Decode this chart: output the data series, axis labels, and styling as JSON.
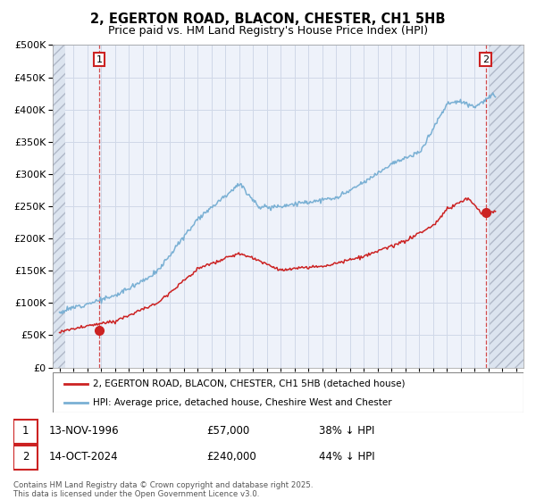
{
  "title": "2, EGERTON ROAD, BLACON, CHESTER, CH1 5HB",
  "subtitle": "Price paid vs. HM Land Registry's House Price Index (HPI)",
  "title_fontsize": 10.5,
  "subtitle_fontsize": 9,
  "ylim": [
    0,
    500000
  ],
  "yticks": [
    0,
    50000,
    100000,
    150000,
    200000,
    250000,
    300000,
    350000,
    400000,
    450000,
    500000
  ],
  "xlim_min": 1993.5,
  "xlim_max": 2027.5,
  "hatch_left_end": 1994.42,
  "hatch_right_start": 2025.08,
  "sale1_year": 1996.87,
  "sale1_price": 57000,
  "sale1_label": "1",
  "sale2_year": 2024.79,
  "sale2_price": 240000,
  "sale2_label": "2",
  "red_line_color": "#cc2222",
  "blue_line_color": "#7ab0d4",
  "marker_color": "#cc2222",
  "grid_color": "#d0d8e8",
  "bg_color": "#eef2fa",
  "legend_label_red": "2, EGERTON ROAD, BLACON, CHESTER, CH1 5HB (detached house)",
  "legend_label_blue": "HPI: Average price, detached house, Cheshire West and Chester",
  "footer": "Contains HM Land Registry data © Crown copyright and database right 2025.\nThis data is licensed under the Open Government Licence v3.0."
}
